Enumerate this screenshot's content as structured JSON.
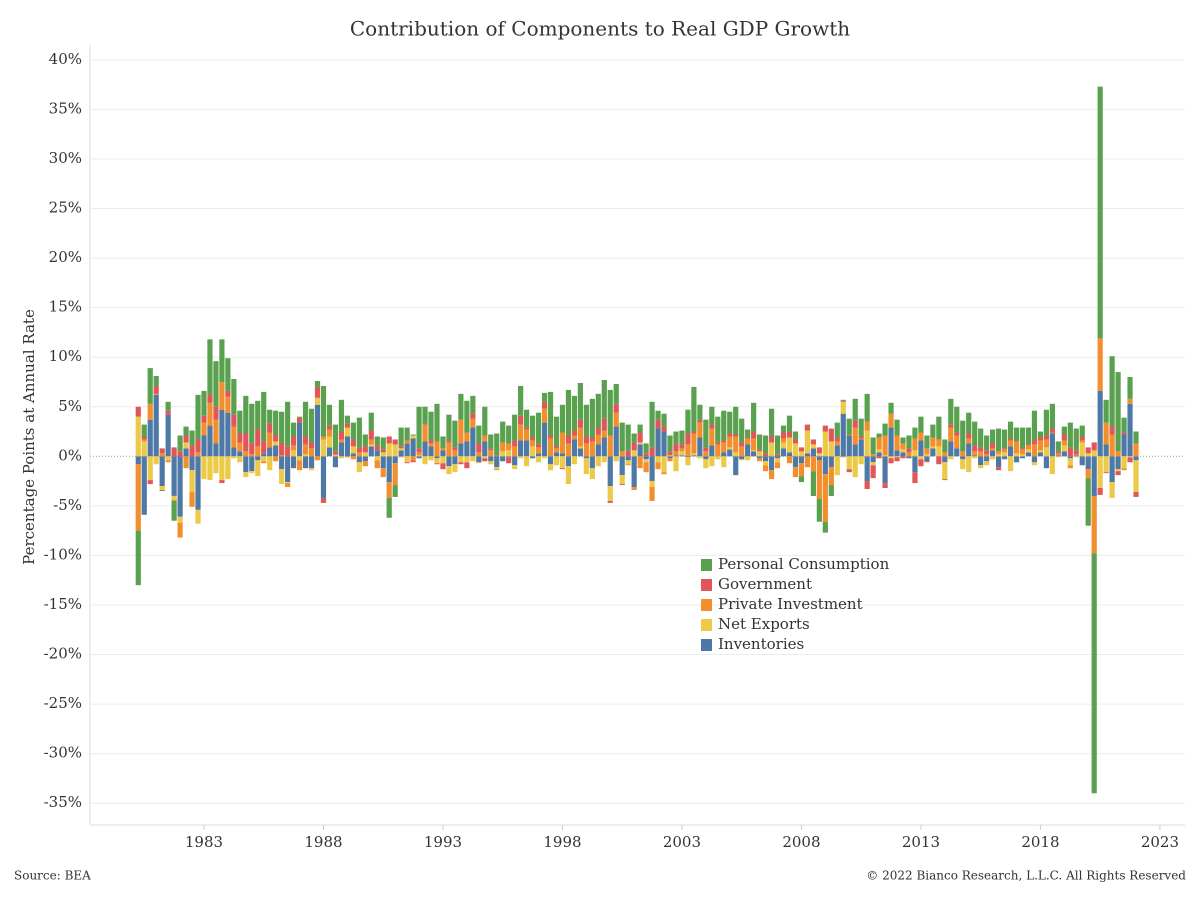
{
  "chart_data": {
    "type": "stacked_bar",
    "title": "Contribution of Components to Real GDP Growth",
    "y_label": "Percentage Points at Annual Rate",
    "source": "Source: BEA",
    "copyright": "© 2022 Bianco Research, L.L.C. All Rights Reserved",
    "xlim": [
      1978.23,
      2024.05
    ],
    "xticks": [
      1983,
      1988,
      1993,
      1998,
      2003,
      2008,
      2013,
      2018,
      2023
    ],
    "ylim": [
      -37.2,
      41.5
    ],
    "yticks": [
      {
        "value": 40,
        "label": "40%"
      },
      {
        "value": 35,
        "label": "35%"
      },
      {
        "value": 30,
        "label": "30%"
      },
      {
        "value": 25,
        "label": "25%"
      },
      {
        "value": 20,
        "label": "20%"
      },
      {
        "value": 15,
        "label": "15%"
      },
      {
        "value": 10,
        "label": "10%"
      },
      {
        "value": 5,
        "label": "5%"
      },
      {
        "value": 0,
        "label": "0%"
      },
      {
        "value": -5,
        "label": "-5%"
      },
      {
        "value": -10,
        "label": "-10%"
      },
      {
        "value": -15,
        "label": "-15%"
      },
      {
        "value": -20,
        "label": "-20%"
      },
      {
        "value": -25,
        "label": "-25%"
      },
      {
        "value": -30,
        "label": "-30%"
      },
      {
        "value": -35,
        "label": "-35%"
      }
    ],
    "grid": true,
    "x": [
      1980.25,
      1980.5,
      1980.75,
      1981,
      1981.25,
      1981.5,
      1981.75,
      1982,
      1982.25,
      1982.5,
      1982.75,
      1983,
      1983.25,
      1983.5,
      1983.75,
      1984,
      1984.25,
      1984.5,
      1984.75,
      1985,
      1985.25,
      1985.5,
      1985.75,
      1986,
      1986.25,
      1986.5,
      1986.75,
      1987,
      1987.25,
      1987.5,
      1987.75,
      1988,
      1988.25,
      1988.5,
      1988.75,
      1989,
      1989.25,
      1989.5,
      1989.75,
      1990,
      1990.25,
      1990.5,
      1990.75,
      1991,
      1991.25,
      1991.5,
      1991.75,
      1992,
      1992.25,
      1992.5,
      1992.75,
      1993,
      1993.25,
      1993.5,
      1993.75,
      1994,
      1994.25,
      1994.5,
      1994.75,
      1995,
      1995.25,
      1995.5,
      1995.75,
      1996,
      1996.25,
      1996.5,
      1996.75,
      1997,
      1997.25,
      1997.5,
      1997.75,
      1998,
      1998.25,
      1998.5,
      1998.75,
      1999,
      1999.25,
      1999.5,
      1999.75,
      2000,
      2000.25,
      2000.5,
      2000.75,
      2001,
      2001.25,
      2001.5,
      2001.75,
      2002,
      2002.25,
      2002.5,
      2002.75,
      2003,
      2003.25,
      2003.5,
      2003.75,
      2004,
      2004.25,
      2004.5,
      2004.75,
      2005,
      2005.25,
      2005.5,
      2005.75,
      2006,
      2006.25,
      2006.5,
      2006.75,
      2007,
      2007.25,
      2007.5,
      2007.75,
      2008,
      2008.25,
      2008.5,
      2008.75,
      2009,
      2009.25,
      2009.5,
      2009.75,
      2010,
      2010.25,
      2010.5,
      2010.75,
      2011,
      2011.25,
      2011.5,
      2011.75,
      2012,
      2012.25,
      2012.5,
      2012.75,
      2013,
      2013.25,
      2013.5,
      2013.75,
      2014,
      2014.25,
      2014.5,
      2014.75,
      2015,
      2015.25,
      2015.5,
      2015.75,
      2016,
      2016.25,
      2016.5,
      2016.75,
      2017,
      2017.25,
      2017.5,
      2017.75,
      2018,
      2018.25,
      2018.5,
      2018.75,
      2019,
      2019.25,
      2019.5,
      2019.75,
      2020,
      2020.25,
      2020.5,
      2020.75,
      2021,
      2021.25,
      2021.5,
      2021.75,
      2022
    ],
    "series": [
      {
        "name": "Personal Consumption",
        "color": "#59a14f",
        "values": [
          -5.5,
          1.2,
          3.6,
          1.0,
          -0.1,
          0.9,
          -2.0,
          1.6,
          0.9,
          1.5,
          4.5,
          2.5,
          5.5,
          4.6,
          4.3,
          3.3,
          3.6,
          2.3,
          3.8,
          4.0,
          2.9,
          5.0,
          1.4,
          2.4,
          3.1,
          4.5,
          1.4,
          0.1,
          3.5,
          3.4,
          0.6,
          5.1,
          2.1,
          2.7,
          3.2,
          0.8,
          1.7,
          3.0,
          1.2,
          1.8,
          0.9,
          1.2,
          -2.0,
          -1.2,
          1.9,
          1.3,
          0.1,
          4.2,
          1.7,
          2.9,
          3.8,
          1.2,
          2.6,
          2.7,
          2.6,
          3.2,
          1.8,
          1.8,
          2.9,
          1.4,
          2.2,
          2.1,
          1.8,
          2.6,
          3.0,
          1.8,
          2.2,
          3.2,
          0.9,
          4.4,
          3.0,
          2.8,
          4.6,
          3.5,
          3.7,
          3.2,
          3.9,
          3.4,
          3.9,
          4.6,
          2.0,
          2.9,
          2.6,
          0.9,
          0.8,
          1.0,
          4.6,
          0.9,
          1.3,
          1.6,
          1.2,
          1.4,
          2.4,
          4.5,
          1.5,
          2.8,
          1.8,
          2.6,
          3.0,
          2.2,
          2.8,
          2.4,
          0.8,
          2.9,
          1.5,
          1.8,
          2.8,
          1.9,
          0.7,
          1.6,
          0.8,
          -0.6,
          0.0,
          -2.5,
          -2.3,
          -1.1,
          -1.1,
          1.5,
          0.1,
          1.6,
          2.2,
          1.8,
          2.8,
          1.7,
          0.4,
          1.2,
          1.1,
          1.6,
          0.6,
          1.3,
          1.1,
          1.6,
          1.3,
          1.3,
          2.3,
          1.3,
          2.6,
          2.6,
          3.1,
          2.1,
          2.4,
          1.9,
          1.5,
          1.4,
          2.3,
          1.9,
          1.7,
          1.4,
          2.1,
          1.7,
          2.9,
          0.6,
          2.6,
          2.5,
          1.0,
          0.8,
          2.5,
          2.2,
          1.1,
          -4.8,
          -24.2,
          25.4,
          2.3,
          7.1,
          8.0,
          1.5,
          2.2,
          1.2
        ]
      },
      {
        "name": "Government",
        "color": "#e15759",
        "values": [
          1.0,
          0.3,
          -0.4,
          0.8,
          0.5,
          0.4,
          0.9,
          0.5,
          0.7,
          1.1,
          1.3,
          0.7,
          0.9,
          1.3,
          -0.3,
          0.6,
          1.2,
          0.9,
          1.8,
          1.1,
          1.7,
          1.2,
          0.9,
          0.7,
          1.3,
          1.0,
          0.9,
          0.5,
          0.8,
          0.6,
          1.1,
          -0.5,
          0.4,
          0.3,
          0.8,
          0.4,
          0.7,
          0.5,
          0.6,
          0.9,
          0.5,
          0.3,
          0.7,
          0.5,
          0.2,
          -0.1,
          -0.2,
          0.4,
          0.1,
          0.3,
          -0.1,
          -0.6,
          0.2,
          0.3,
          -0.2,
          -0.6,
          0.5,
          0.9,
          -0.3,
          0.2,
          0.1,
          0.0,
          -0.6,
          0.6,
          0.9,
          0.2,
          0.3,
          0.3,
          0.7,
          0.3,
          0.2,
          -0.1,
          0.8,
          0.5,
          0.8,
          0.7,
          0.4,
          0.7,
          1.2,
          -0.2,
          0.9,
          -0.1,
          0.6,
          0.8,
          1.0,
          0.3,
          0.9,
          0.9,
          0.5,
          0.4,
          0.8,
          0.4,
          1.1,
          0.2,
          0.3,
          0.4,
          0.4,
          0.2,
          0.2,
          0.3,
          0.2,
          0.4,
          0.1,
          0.7,
          0.2,
          0.3,
          0.6,
          0.2,
          0.6,
          0.6,
          0.4,
          0.4,
          0.6,
          0.5,
          0.6,
          0.6,
          1.3,
          0.4,
          0.1,
          -0.3,
          0.7,
          0.2,
          -0.8,
          -1.3,
          -0.2,
          -0.5,
          -0.5,
          -0.4,
          -0.2,
          0.4,
          -1.1,
          -0.7,
          -0.1,
          0.0,
          -0.8,
          -0.1,
          0.3,
          0.3,
          0.0,
          0.5,
          0.6,
          0.4,
          0.4,
          0.5,
          -0.3,
          0.1,
          0.2,
          0.0,
          0.1,
          0.1,
          0.5,
          0.3,
          0.4,
          0.4,
          0.2,
          0.6,
          0.9,
          0.4,
          0.4,
          0.6,
          0.8,
          -0.7,
          -0.1,
          0.8,
          -0.4,
          0.2,
          -0.5,
          -0.5
        ]
      },
      {
        "name": "Private Investment",
        "color": "#f28e2b",
        "values": [
          -6.7,
          0.2,
          1.6,
          0.1,
          0.3,
          -0.2,
          -0.1,
          -1.5,
          -1.2,
          -1.5,
          0.4,
          1.3,
          2.3,
          2.4,
          2.8,
          1.6,
          2.1,
          0.9,
          0.5,
          0.2,
          1.0,
          -0.2,
          1.5,
          -0.5,
          0.1,
          -0.4,
          0.5,
          -1.0,
          1.0,
          0.8,
          -0.4,
          0.3,
          0.7,
          0.1,
          0.3,
          -0.1,
          -0.3,
          0.4,
          -0.5,
          0.5,
          -0.8,
          -0.9,
          -1.6,
          -2.2,
          -0.1,
          0.3,
          -0.4,
          0.3,
          1.7,
          0.3,
          1.5,
          0.2,
          1.4,
          0.6,
          2.4,
          0.9,
          0.9,
          0.4,
          0.6,
          0.6,
          -0.1,
          0.9,
          0.7,
          1.0,
          1.6,
          1.1,
          0.6,
          0.6,
          1.4,
          1.8,
          0.4,
          2.1,
          1.3,
          0.4,
          1.9,
          1.3,
          1.5,
          1.0,
          0.7,
          2.1,
          1.4,
          0.5,
          -0.1,
          -0.3,
          -1.2,
          -1.0,
          -1.4,
          -0.7,
          -0.2,
          -0.3,
          0.4,
          0.3,
          1.2,
          2.0,
          1.5,
          0.5,
          1.7,
          1.2,
          1.0,
          1.1,
          1.6,
          1.0,
          0.6,
          1.2,
          -0.3,
          -0.6,
          -0.9,
          -0.6,
          0.4,
          -0.7,
          -1.0,
          -1.3,
          -1.1,
          -1.5,
          -3.9,
          -4.8,
          -1.8,
          0.4,
          -0.1,
          0.1,
          1.7,
          0.1,
          0.9,
          0.2,
          1.2,
          2.0,
          1.4,
          1.5,
          0.6,
          0.4,
          1.2,
          0.8,
          0.6,
          0.9,
          0.7,
          0.4,
          1.4,
          1.3,
          0.5,
          0.5,
          0.4,
          0.5,
          0.2,
          0.2,
          0.3,
          0.3,
          0.6,
          1.2,
          0.5,
          0.4,
          1.2,
          1.0,
          0.8,
          0.1,
          0.2,
          0.5,
          -0.3,
          0.1,
          0.2,
          -0.9,
          -5.8,
          5.3,
          2.2,
          2.2,
          0.5,
          -0.2,
          0.5,
          1.3
        ]
      },
      {
        "name": "Net Exports",
        "color": "#edc948",
        "values": [
          4.0,
          1.5,
          -2.4,
          -0.8,
          -0.4,
          -0.4,
          -0.4,
          -0.6,
          0.6,
          -2.2,
          -1.4,
          -2.3,
          -2.4,
          -1.7,
          -2.4,
          -2.3,
          -0.2,
          -0.6,
          -0.5,
          -0.2,
          -1.6,
          -0.5,
          -1.4,
          0.4,
          -1.5,
          -0.1,
          0.6,
          -0.4,
          0.2,
          -0.2,
          0.7,
          1.7,
          1.1,
          0.1,
          -0.2,
          0.9,
          0.7,
          -1.0,
          0.4,
          0.2,
          -0.4,
          0.4,
          1.3,
          1.2,
          0.2,
          -0.6,
          0.3,
          0.1,
          -0.8,
          -0.4,
          -0.5,
          -0.7,
          -0.8,
          -0.8,
          -0.6,
          -0.6,
          -0.5,
          -0.1,
          -0.2,
          -0.3,
          -0.2,
          0.5,
          0.6,
          -0.4,
          -0.2,
          -1.0,
          1.0,
          -0.6,
          -0.2,
          -0.6,
          -0.9,
          -1.2,
          -1.8,
          -0.8,
          0.2,
          -1.6,
          -1.1,
          -1.0,
          -0.6,
          -1.5,
          -0.5,
          -0.9,
          -0.4,
          0.6,
          0.2,
          -0.3,
          -0.6,
          -0.6,
          -1.6,
          0.1,
          -1.5,
          0.4,
          -0.8,
          0.2,
          -0.2,
          -0.9,
          -1.0,
          -0.3,
          -1.1,
          0.2,
          0.4,
          -0.1,
          -0.4,
          0.1,
          0.5,
          -0.4,
          1.4,
          -0.4,
          0.6,
          1.5,
          1.3,
          0.5,
          2.3,
          0.4,
          0.3,
          2.5,
          1.5,
          -1.9,
          1.2,
          -1.3,
          -2.1,
          -0.8,
          2.6,
          -0.3,
          0.3,
          0.1,
          -0.2,
          -0.1,
          0.3,
          0.0,
          0.6,
          -0.3,
          0.2,
          0.2,
          1.0,
          -1.7,
          -0.3,
          0.0,
          -1.0,
          -1.6,
          -0.2,
          -0.3,
          -0.4,
          -0.3,
          0.2,
          0.4,
          -1.5,
          0.3,
          0.2,
          0.3,
          -0.3,
          0.2,
          0.9,
          -1.8,
          -0.1,
          0.6,
          -0.7,
          -0.1,
          1.4,
          0.3,
          0.6,
          -3.2,
          -1.6,
          -1.6,
          -0.2,
          -1.2,
          -0.1,
          -3.2
        ]
      },
      {
        "name": "Inventories",
        "color": "#4e79a7",
        "values": [
          -0.8,
          -5.9,
          3.7,
          6.2,
          -3.0,
          4.2,
          -4.0,
          -6.1,
          0.8,
          -1.4,
          -5.4,
          2.1,
          3.1,
          1.3,
          4.7,
          4.4,
          0.9,
          0.5,
          -1.6,
          -1.5,
          -0.4,
          0.3,
          0.9,
          1.1,
          -1.3,
          -2.6,
          -1.2,
          3.4,
          -1.2,
          -1.2,
          5.2,
          -4.2,
          0.9,
          -1.1,
          1.4,
          2.0,
          0.3,
          -0.6,
          -0.5,
          1.0,
          0.6,
          -1.2,
          -2.6,
          -0.7,
          0.6,
          1.3,
          1.8,
          -0.2,
          1.5,
          1.0,
          -0.2,
          0.6,
          -1.0,
          -0.8,
          1.3,
          1.5,
          2.9,
          -0.6,
          1.5,
          -0.5,
          -1.1,
          -0.5,
          -0.1,
          -0.9,
          1.6,
          1.6,
          -0.2,
          0.3,
          3.4,
          -0.8,
          0.4,
          0.3,
          -1.0,
          1.7,
          0.8,
          -0.2,
          -1.2,
          1.2,
          1.9,
          -3.0,
          3.0,
          -1.9,
          -0.4,
          -3.1,
          1.2,
          -0.3,
          -2.5,
          2.8,
          2.5,
          -0.2,
          0.1,
          0.1,
          -0.1,
          0.1,
          1.9,
          -0.3,
          1.1,
          0.0,
          0.4,
          0.7,
          -1.9,
          -0.3,
          1.2,
          0.5,
          -0.2,
          -0.5,
          -1.4,
          -0.2,
          0.8,
          0.4,
          -1.1,
          -0.7,
          0.3,
          0.8,
          -0.4,
          -1.8,
          -1.1,
          1.1,
          4.3,
          2.1,
          1.2,
          1.7,
          -2.5,
          -0.6,
          0.4,
          -2.7,
          2.9,
          0.6,
          0.4,
          -0.2,
          -1.6,
          1.6,
          -0.5,
          0.8,
          0.0,
          -0.6,
          1.5,
          0.8,
          -0.3,
          1.3,
          0.1,
          -0.9,
          -0.5,
          0.6,
          -1.1,
          -0.3,
          1.0,
          -0.6,
          -0.2,
          0.4,
          -0.6,
          0.4,
          -1.2,
          2.3,
          0.1,
          0.5,
          -0.2,
          0.1,
          -0.9,
          -1.3,
          -4.0,
          6.6,
          1.2,
          -2.6,
          -1.3,
          2.2,
          5.3,
          -0.4
        ]
      }
    ]
  }
}
